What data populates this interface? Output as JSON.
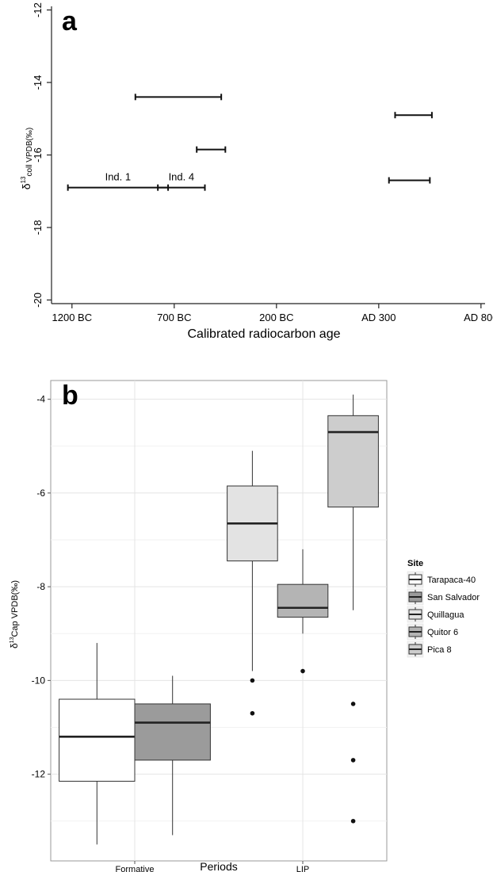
{
  "chart_data": [
    {
      "panel_label": "a",
      "type": "interval",
      "xlabel": "Calibrated radiocarbon age",
      "ylabel_main": "δ",
      "ylabel_sup": "13",
      "ylabel_sub": "coll VPDB(‰)",
      "xticks": [
        {
          "value": -1200,
          "label": "1200 BC"
        },
        {
          "value": -700,
          "label": "700 BC"
        },
        {
          "value": -200,
          "label": "200 BC"
        },
        {
          "value": 300,
          "label": "AD 300"
        },
        {
          "value": 800,
          "label": "AD 800"
        }
      ],
      "yticks": [
        {
          "value": -12,
          "label": "-12"
        },
        {
          "value": -14,
          "label": "-14"
        },
        {
          "value": -16,
          "label": "-16"
        },
        {
          "value": -18,
          "label": "-18"
        },
        {
          "value": -20,
          "label": "-20"
        }
      ],
      "xlim": [
        -1300,
        820
      ],
      "ylim": [
        -20.1,
        -11.9
      ],
      "intervals": [
        {
          "x_start": -890,
          "x_end": -470,
          "y": -14.4,
          "label": ""
        },
        {
          "x_start": -1220,
          "x_end": -730,
          "y": -16.9,
          "label": "Ind. 1"
        },
        {
          "x_start": -590,
          "x_end": -450,
          "y": -15.85,
          "label": ""
        },
        {
          "x_start": -780,
          "x_end": -550,
          "y": -16.9,
          "label": "Ind. 4"
        },
        {
          "x_start": 380,
          "x_end": 560,
          "y": -14.9,
          "label": ""
        },
        {
          "x_start": 350,
          "x_end": 550,
          "y": -16.7,
          "label": ""
        }
      ]
    },
    {
      "panel_label": "b",
      "type": "box",
      "xlabel": "Periods",
      "ylabel_main": "δ",
      "ylabel_sup": "13",
      "ylabel_sub": "Cap VPDB(‰)",
      "categories": [
        "Formative",
        "LIP"
      ],
      "yticks": [
        {
          "value": -4,
          "label": "-4"
        },
        {
          "value": -6,
          "label": "-6"
        },
        {
          "value": -8,
          "label": "-8"
        },
        {
          "value": -10,
          "label": "-10"
        },
        {
          "value": -12,
          "label": "-12"
        }
      ],
      "ylim": [
        -13.85,
        -3.6
      ],
      "legend_title": "Site",
      "legend_position": "right",
      "series": [
        {
          "name": "Tarapaca-40",
          "color": "#ffffff",
          "category": "Formative",
          "whisker_low": -13.5,
          "q1": -12.15,
          "median": -11.2,
          "q3": -10.4,
          "whisker_high": -9.2,
          "outliers": []
        },
        {
          "name": "San Salvador",
          "color": "#9b9b9b",
          "category": "Formative",
          "whisker_low": -13.3,
          "q1": -11.7,
          "median": -10.9,
          "q3": -10.5,
          "whisker_high": -9.9,
          "outliers": []
        },
        {
          "name": "Quillagua",
          "color": "#e3e3e3",
          "category": "LIP",
          "whisker_low": -9.8,
          "q1": -7.45,
          "median": -6.65,
          "q3": -5.85,
          "whisker_high": -5.1,
          "outliers": [
            -10.0,
            -10.7
          ]
        },
        {
          "name": "Quitor 6",
          "color": "#b4b4b4",
          "category": "LIP",
          "whisker_low": -9.0,
          "q1": -8.65,
          "median": -8.45,
          "q3": -7.95,
          "whisker_high": -7.2,
          "outliers": [
            -9.8
          ]
        },
        {
          "name": "Pica 8",
          "color": "#cdcdcd",
          "category": "LIP",
          "whisker_low": -8.5,
          "q1": -6.3,
          "median": -4.7,
          "q3": -4.35,
          "whisker_high": -3.9,
          "outliers": [
            -10.5,
            -11.7,
            -13.0
          ]
        }
      ]
    }
  ]
}
